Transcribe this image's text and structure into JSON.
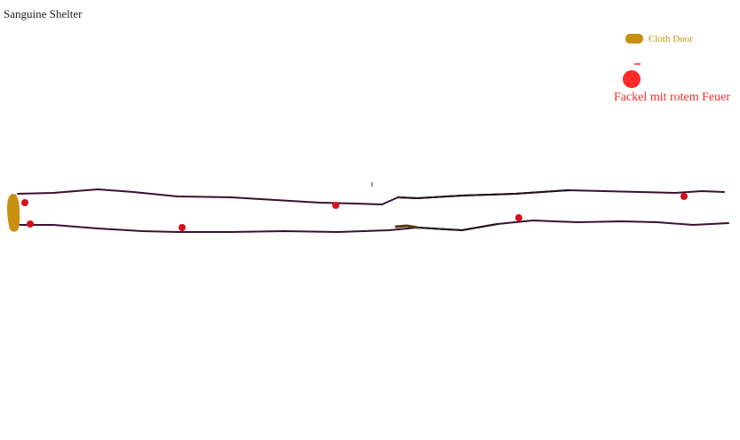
{
  "map": {
    "title": "Sanguine Shelter"
  },
  "legend": {
    "items": [
      {
        "label": "Cloth Door",
        "icon": "cloth-door-icon",
        "color": "#c8900f"
      },
      {
        "label": "Fackel mit rotem Feuer",
        "icon": "red-torch-icon",
        "color": "#ff2a2a"
      }
    ]
  },
  "colors": {
    "wall": "#3a1030",
    "wall_dark": "#1c1418",
    "torch": "#d8101c",
    "door": "#c8900f",
    "debris": "#5a3a12"
  }
}
